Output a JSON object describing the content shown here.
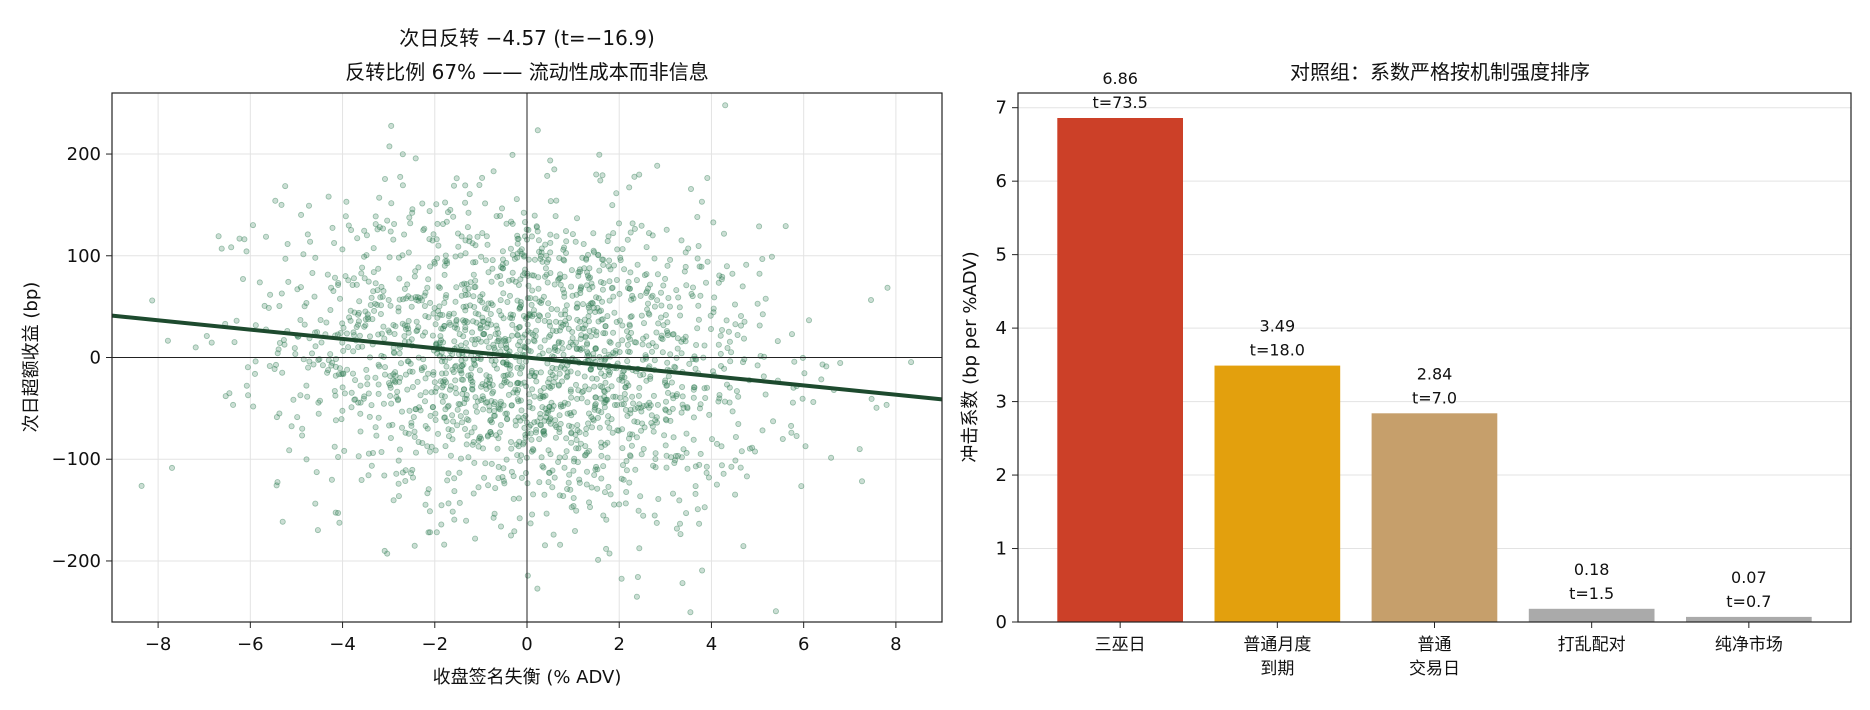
{
  "chart_data": [
    {
      "type": "scatter",
      "title": "次日反转 −4.57 (t=−16.9)",
      "subtitle": "反转比例 67% —— 流动性成本而非信息",
      "xlabel": "收盘签名失衡 (% ADV)",
      "ylabel": "次日超额收益 (bp)",
      "xlim": [
        -9,
        9
      ],
      "ylim": [
        -260,
        260
      ],
      "xticks": [
        -8,
        -6,
        -4,
        -2,
        0,
        2,
        4,
        6,
        8
      ],
      "xtick_labels": [
        "−8",
        "−6",
        "−4",
        "−2",
        "0",
        "2",
        "4",
        "6",
        "8"
      ],
      "yticks": [
        -200,
        -100,
        0,
        100,
        200
      ],
      "ytick_labels": [
        "−200",
        "−100",
        "0",
        "100",
        "200"
      ],
      "grid": true,
      "fit_line": {
        "slope": -4.57,
        "intercept": 0
      },
      "n_points": 2000,
      "x_sd": 2.6,
      "y_sd": 78,
      "colors": {
        "points": "#2e7d52",
        "fit": "#1d4a2e",
        "axes": "#222222"
      }
    },
    {
      "type": "bar",
      "title": "对照组：系数严格按机制强度排序",
      "ylabel": "冲击系数 (bp per %ADV)",
      "categories": [
        "三巫日",
        "普通月度\n到期",
        "普通\n交易日",
        "打乱配对",
        "纯净市场"
      ],
      "values": [
        6.86,
        3.49,
        2.84,
        0.18,
        0.07
      ],
      "labels": [
        "6.86",
        "3.49",
        "2.84",
        "0.18",
        "0.07"
      ],
      "tstats": [
        "t=73.5",
        "t=18.0",
        "t=7.0",
        "t=1.5",
        "t=0.7"
      ],
      "colors": [
        "#cc4028",
        "#e3a00d",
        "#c69f6b",
        "#aaaaaa",
        "#aaaaaa"
      ],
      "ylim": [
        0,
        7.2
      ],
      "yticks": [
        0,
        1,
        2,
        3,
        4,
        5,
        6,
        7
      ],
      "grid": true
    }
  ]
}
